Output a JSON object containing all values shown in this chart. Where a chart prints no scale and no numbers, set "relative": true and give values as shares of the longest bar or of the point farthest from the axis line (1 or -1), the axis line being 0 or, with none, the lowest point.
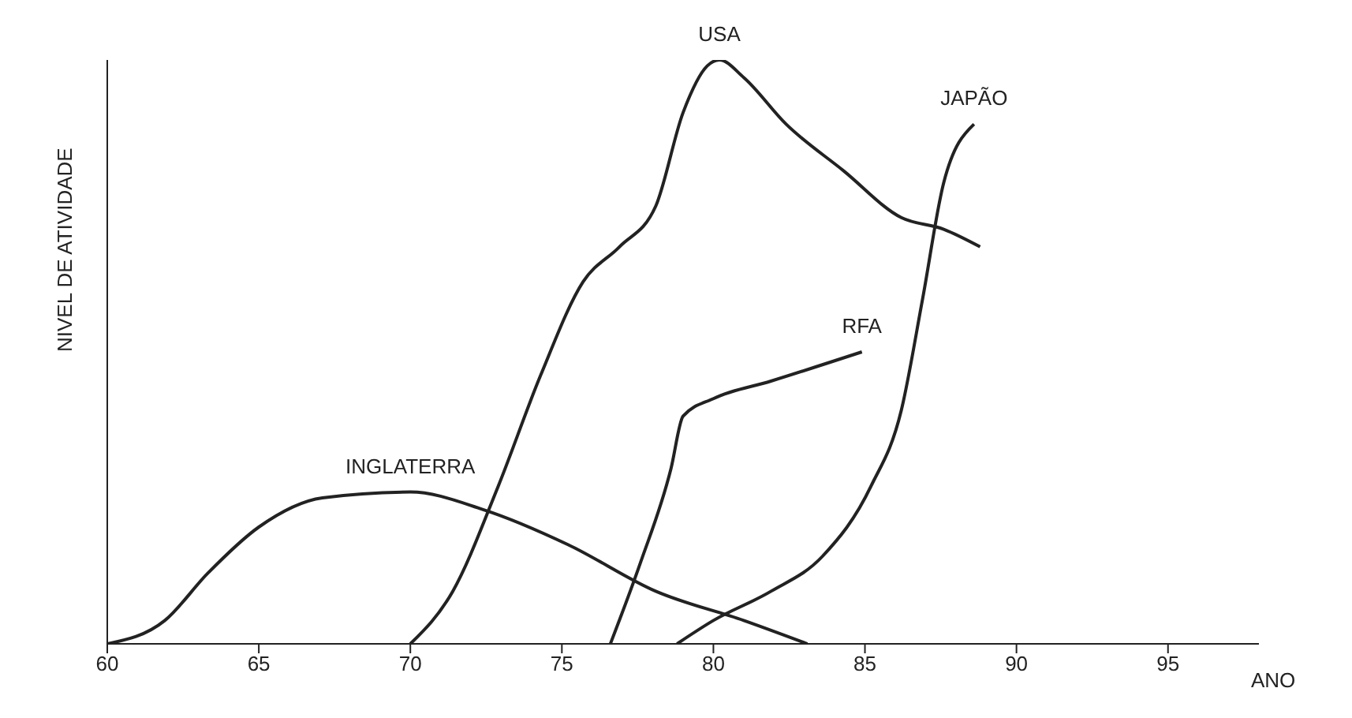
{
  "chart_data": {
    "type": "line",
    "relative": true,
    "xlabel": "ANO",
    "ylabel": "NIVEL DE ATIVIDADE",
    "xlim": [
      60,
      98
    ],
    "xticks": [
      60,
      65,
      70,
      75,
      80,
      85,
      90,
      95
    ],
    "marker": "none",
    "line_style": "solid",
    "series": [
      {
        "name": "INGLATERRA",
        "color": "#222222",
        "x": [
          60,
          61.9,
          63.3,
          65,
          67.1,
          70,
          72.4,
          75.2,
          78.1,
          81,
          83.1
        ],
        "values": [
          0,
          0.04,
          0.12,
          0.2,
          0.25,
          0.26,
          0.23,
          0.17,
          0.09,
          0.04,
          0
        ]
      },
      {
        "name": "USA",
        "color": "#222222",
        "x": [
          70,
          71.4,
          72.9,
          74.3,
          75.7,
          76.9,
          78.1,
          79,
          79.8,
          80.2,
          81,
          82.4,
          84.3,
          86.2,
          87.6,
          88.8
        ],
        "values": [
          0,
          0.09,
          0.27,
          0.46,
          0.62,
          0.68,
          0.75,
          0.91,
          0.99,
          1,
          0.97,
          0.89,
          0.81,
          0.73,
          0.71,
          0.68
        ]
      },
      {
        "name": "RFA",
        "color": "#222222",
        "x": [
          76.6,
          77.6,
          78.6,
          79,
          80,
          81.9,
          84.9
        ],
        "values": [
          0,
          0.14,
          0.3,
          0.39,
          0.42,
          0.45,
          0.5
        ]
      },
      {
        "name": "JAPÃO",
        "color": "#222222",
        "x": [
          78.8,
          80,
          81.9,
          83.6,
          85.2,
          86.2,
          86.9,
          87.6,
          88.6
        ],
        "values": [
          0,
          0.04,
          0.09,
          0.15,
          0.27,
          0.4,
          0.59,
          0.79,
          0.89
        ]
      }
    ]
  }
}
